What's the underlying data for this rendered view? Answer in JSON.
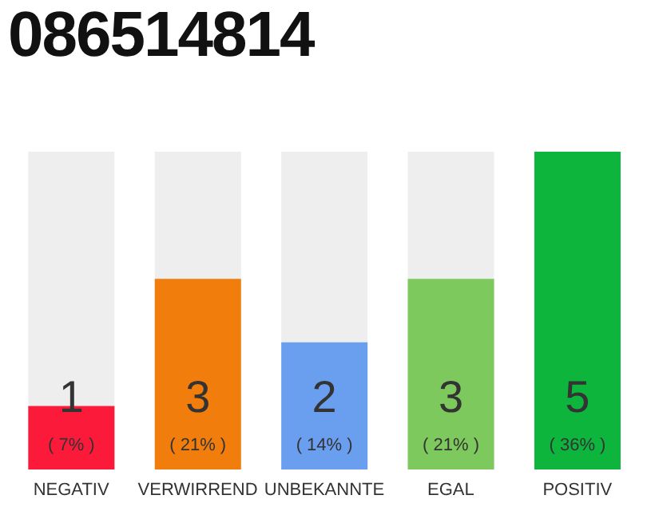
{
  "chart_data": {
    "type": "bar",
    "title": "086514814",
    "categories": [
      "NEGATIV",
      "VERWIRREND",
      "UNBEKANNTE",
      "EGAL",
      "POSITIV"
    ],
    "values": [
      1,
      3,
      2,
      3,
      5
    ],
    "colors": [
      "#fc1a3b",
      "#f07d0c",
      "#6a9ff0",
      "#7ec95d",
      "#0db53d"
    ],
    "value_labels": [
      "1\n( 7% )",
      "3\n( 21% )",
      "2\n( 14% )",
      "3\n( 21% )",
      "5\n( 36% )"
    ],
    "legend": false,
    "grid": false
  }
}
